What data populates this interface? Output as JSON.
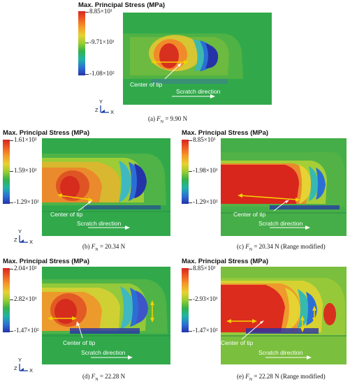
{
  "common": {
    "colorbar_title": "Max. Principal Stress (MPa)",
    "center_of_tip": "Center of tip",
    "scratch_direction": "Scratch direction",
    "axis_y": "Y",
    "axis_x": "X",
    "axis_z": "Z"
  },
  "panels": [
    {
      "id": "a",
      "ticks": [
        "8.85×10¹",
        "-9.71×10¹",
        "-1.08×10²"
      ],
      "caption_prefix": "(a) ",
      "caption_f": "F",
      "caption_sub": "N",
      "caption_value": " = 9.90 N"
    },
    {
      "id": "b",
      "ticks": [
        "1.61×10²",
        "1.59×10¹",
        "-1.29×10²"
      ],
      "caption_prefix": "(b) ",
      "caption_f": "F",
      "caption_sub": "N",
      "caption_value": " = 20.34 N"
    },
    {
      "id": "c",
      "ticks": [
        "8.85×10¹",
        "-1.98×10¹",
        "-1.29×10²"
      ],
      "caption_prefix": "(c) ",
      "caption_f": "F",
      "caption_sub": "N",
      "caption_value": " = 20.34 N (Range modified)"
    },
    {
      "id": "d",
      "ticks": [
        "2.04×10²",
        "2.82×10¹",
        "-1.47×10²"
      ],
      "caption_prefix": "(d) ",
      "caption_f": "F",
      "caption_sub": "N",
      "caption_value": " = 22.28 N"
    },
    {
      "id": "e",
      "ticks": [
        "8.85×10¹",
        "-2.93×10¹",
        "-1.47×10²"
      ],
      "caption_prefix": "(e) ",
      "caption_f": "F",
      "caption_sub": "N",
      "caption_value": " = 22.28 N (Range modified)"
    }
  ],
  "colors": {
    "background_field": "#2fa84a",
    "high_stress": "#d7261e",
    "low_stress": "#2533a8",
    "arrow": "#f5d000"
  }
}
